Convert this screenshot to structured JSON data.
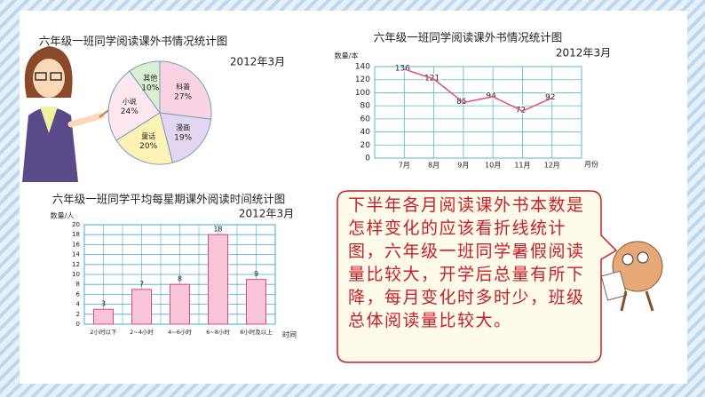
{
  "chart_data": [
    {
      "type": "pie",
      "title": "六年级一班同学阅读课外书情况统计图",
      "subtitle": "2012年3月",
      "categories": [
        "科普",
        "漫画",
        "童话",
        "小说",
        "其他"
      ],
      "values": [
        27,
        19,
        20,
        24,
        10
      ],
      "value_labels": [
        "27%",
        "19%",
        "20%",
        "24%",
        "10%"
      ],
      "colors": [
        "#f9d3e2",
        "#e3d6f1",
        "#fbf2b3",
        "#fde6ee",
        "#d8efd0"
      ]
    },
    {
      "type": "line",
      "title": "六年级一班同学阅读课外书情况统计图",
      "subtitle": "2012年3月",
      "y_label": "数量/本",
      "x_label": "月份",
      "categories": [
        "7月",
        "8月",
        "9月",
        "10月",
        "11月",
        "12月"
      ],
      "values": [
        136,
        121,
        85,
        94,
        72,
        92
      ],
      "color": "#e4507a",
      "ylim": [
        0,
        140
      ],
      "yticks": [
        0,
        20,
        40,
        60,
        80,
        100,
        120,
        140
      ],
      "grid": true
    },
    {
      "type": "bar",
      "title": "六年级一班同学平均每星期课外阅读时间统计图",
      "subtitle": "2012年3月",
      "y_label": "数量/人",
      "x_label": "时间",
      "categories": [
        "2小时以下",
        "2~4小时",
        "4~6小时",
        "6~8小时",
        "8小时及以上"
      ],
      "values": [
        3,
        7,
        8,
        18,
        9
      ],
      "color": "#f8c6d8",
      "ylim": [
        0,
        20
      ],
      "yticks": [
        0,
        2,
        4,
        6,
        8,
        10,
        12,
        14,
        16,
        18,
        20
      ],
      "grid": true
    }
  ],
  "bubble": {
    "text": "下半年各月阅读课外书本数是怎样变化的应该看折线统计图，六年级一班同学暑假阅读量比较大，开学后总量有所下降，每月变化时多时少，班级总体阅读量比较大。"
  }
}
